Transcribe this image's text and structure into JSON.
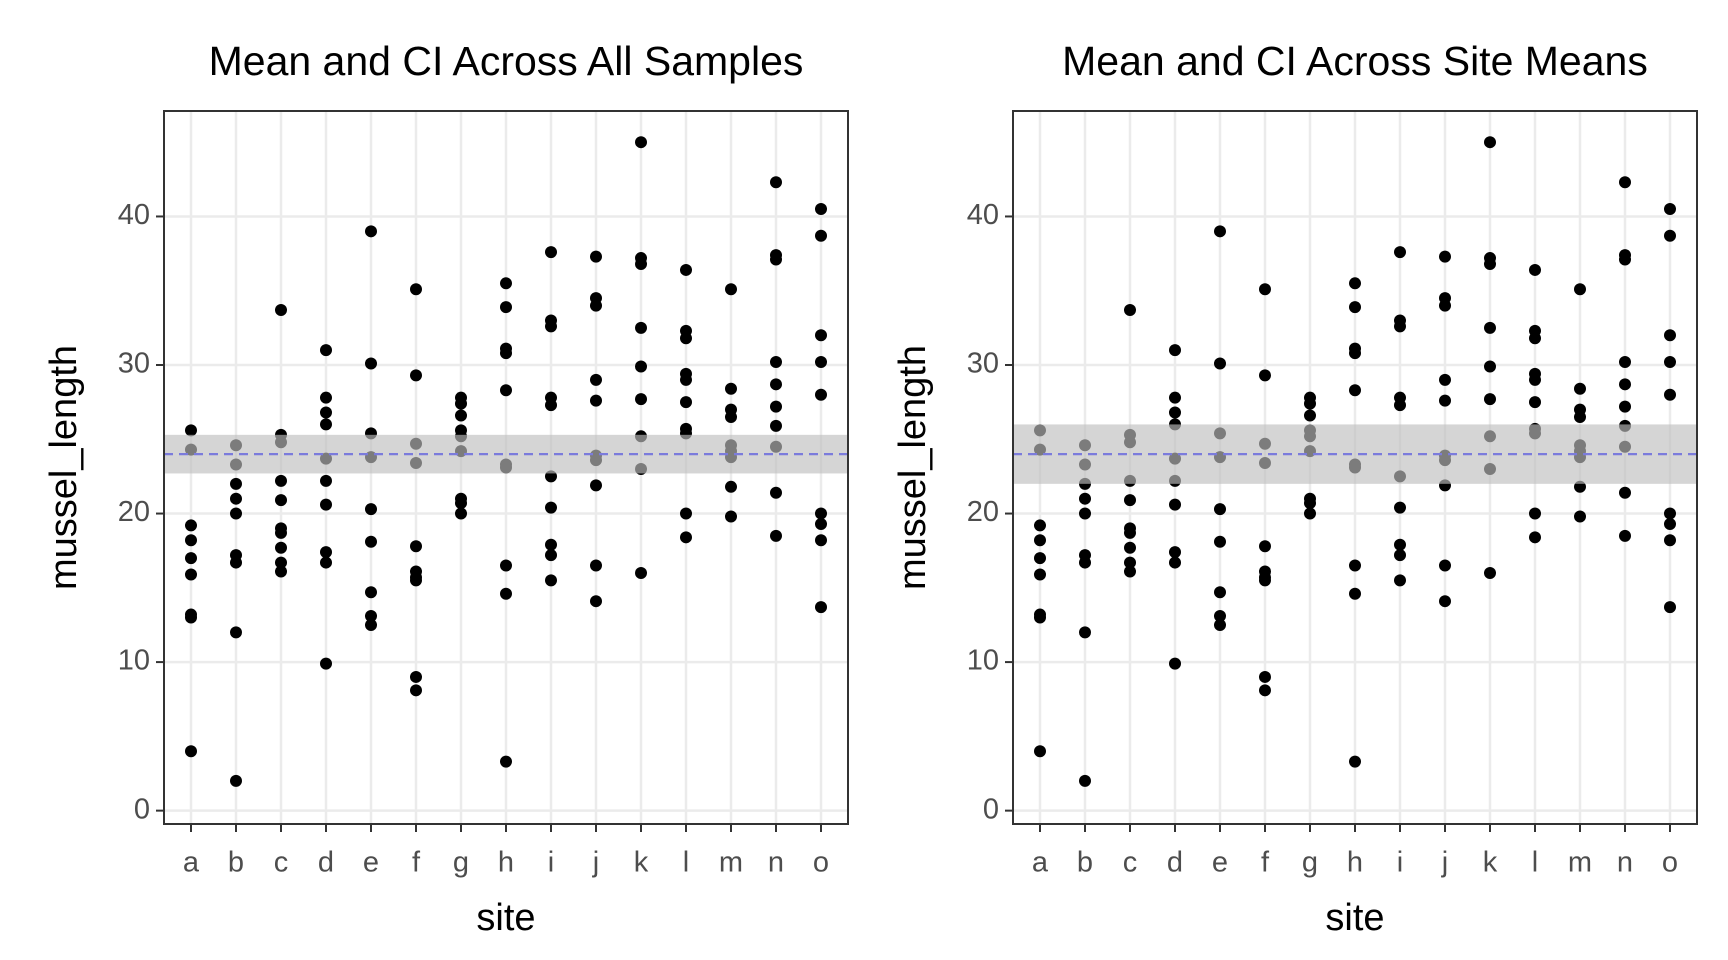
{
  "chart_data": [
    {
      "type": "strip",
      "title": "Mean and CI Across All Samples",
      "x_label": "site",
      "y_label": "mussel_length",
      "categories": [
        "a",
        "b",
        "c",
        "d",
        "e",
        "f",
        "g",
        "h",
        "i",
        "j",
        "k",
        "l",
        "m",
        "n",
        "o"
      ],
      "values": [
        [
          25.6,
          24.3,
          19.2,
          18.2,
          17.0,
          15.9,
          13.2,
          13.0,
          4.0
        ],
        [
          24.6,
          23.3,
          22.0,
          21.0,
          20.0,
          17.2,
          16.7,
          12.0,
          2.0
        ],
        [
          33.7,
          25.3,
          24.8,
          22.2,
          20.9,
          19.0,
          18.7,
          17.7,
          16.7,
          16.1
        ],
        [
          31.0,
          27.8,
          26.8,
          26.0,
          23.7,
          22.2,
          20.6,
          17.4,
          16.7,
          9.9
        ],
        [
          39.0,
          30.1,
          25.4,
          23.8,
          20.3,
          18.1,
          14.7,
          13.1,
          12.5
        ],
        [
          35.1,
          29.3,
          24.7,
          23.4,
          17.8,
          16.1,
          15.7,
          15.5,
          9.0,
          8.1
        ],
        [
          27.8,
          27.4,
          26.6,
          25.6,
          25.2,
          24.2,
          21.0,
          20.7,
          20.0
        ],
        [
          35.5,
          33.9,
          31.1,
          30.8,
          28.3,
          23.3,
          23.1,
          16.5,
          14.6,
          3.3
        ],
        [
          37.6,
          33.0,
          32.6,
          27.8,
          27.3,
          22.5,
          20.4,
          17.9,
          17.2,
          15.5
        ],
        [
          37.3,
          34.5,
          34.0,
          29.0,
          27.6,
          23.9,
          23.6,
          21.9,
          16.5,
          14.1
        ],
        [
          45.0,
          37.2,
          36.8,
          32.5,
          29.9,
          27.7,
          25.2,
          23.0,
          16.0
        ],
        [
          36.4,
          32.3,
          31.8,
          29.4,
          29.0,
          27.5,
          25.7,
          25.4,
          20.0,
          18.4
        ],
        [
          35.1,
          28.4,
          27.0,
          26.5,
          24.6,
          24.2,
          23.8,
          21.8,
          19.8
        ],
        [
          42.3,
          37.4,
          37.1,
          30.2,
          28.7,
          27.2,
          25.9,
          24.5,
          21.4,
          18.5
        ],
        [
          40.5,
          38.7,
          32.0,
          30.2,
          28.0,
          20.0,
          19.3,
          18.2,
          13.7
        ]
      ],
      "point_color": "#000000",
      "mean": 24.0,
      "ci": [
        22.7,
        25.3
      ],
      "mean_color": "#7b7bdc",
      "ci_color": "#bfbfbf",
      "ylim": [
        -0.9,
        47.1
      ],
      "yticks": [
        0,
        10,
        20,
        30,
        40
      ],
      "grid": true
    },
    {
      "type": "strip",
      "title": "Mean and CI Across Site Means",
      "x_label": "site",
      "y_label": "mussel_length",
      "categories": [
        "a",
        "b",
        "c",
        "d",
        "e",
        "f",
        "g",
        "h",
        "i",
        "j",
        "k",
        "l",
        "m",
        "n",
        "o"
      ],
      "values": [
        [
          25.6,
          24.3,
          19.2,
          18.2,
          17.0,
          15.9,
          13.2,
          13.0,
          4.0
        ],
        [
          24.6,
          23.3,
          22.0,
          21.0,
          20.0,
          17.2,
          16.7,
          12.0,
          2.0
        ],
        [
          33.7,
          25.3,
          24.8,
          22.2,
          20.9,
          19.0,
          18.7,
          17.7,
          16.7,
          16.1
        ],
        [
          31.0,
          27.8,
          26.8,
          26.0,
          23.7,
          22.2,
          20.6,
          17.4,
          16.7,
          9.9
        ],
        [
          39.0,
          30.1,
          25.4,
          23.8,
          20.3,
          18.1,
          14.7,
          13.1,
          12.5
        ],
        [
          35.1,
          29.3,
          24.7,
          23.4,
          17.8,
          16.1,
          15.7,
          15.5,
          9.0,
          8.1
        ],
        [
          27.8,
          27.4,
          26.6,
          25.6,
          25.2,
          24.2,
          21.0,
          20.7,
          20.0
        ],
        [
          35.5,
          33.9,
          31.1,
          30.8,
          28.3,
          23.3,
          23.1,
          16.5,
          14.6,
          3.3
        ],
        [
          37.6,
          33.0,
          32.6,
          27.8,
          27.3,
          22.5,
          20.4,
          17.9,
          17.2,
          15.5
        ],
        [
          37.3,
          34.5,
          34.0,
          29.0,
          27.6,
          23.9,
          23.6,
          21.9,
          16.5,
          14.1
        ],
        [
          45.0,
          37.2,
          36.8,
          32.5,
          29.9,
          27.7,
          25.2,
          23.0,
          16.0
        ],
        [
          36.4,
          32.3,
          31.8,
          29.4,
          29.0,
          27.5,
          25.7,
          25.4,
          20.0,
          18.4
        ],
        [
          35.1,
          28.4,
          27.0,
          26.5,
          24.6,
          24.2,
          23.8,
          21.8,
          19.8
        ],
        [
          42.3,
          37.4,
          37.1,
          30.2,
          28.7,
          27.2,
          25.9,
          24.5,
          21.4,
          18.5
        ],
        [
          40.5,
          38.7,
          32.0,
          30.2,
          28.0,
          20.0,
          19.3,
          18.2,
          13.7
        ]
      ],
      "point_color": "#000000",
      "mean": 24.0,
      "ci": [
        22.0,
        26.0
      ],
      "mean_color": "#7b7bdc",
      "ci_color": "#bfbfbf",
      "ylim": [
        -0.9,
        47.1
      ],
      "yticks": [
        0,
        10,
        20,
        30,
        40
      ],
      "grid": true
    }
  ]
}
